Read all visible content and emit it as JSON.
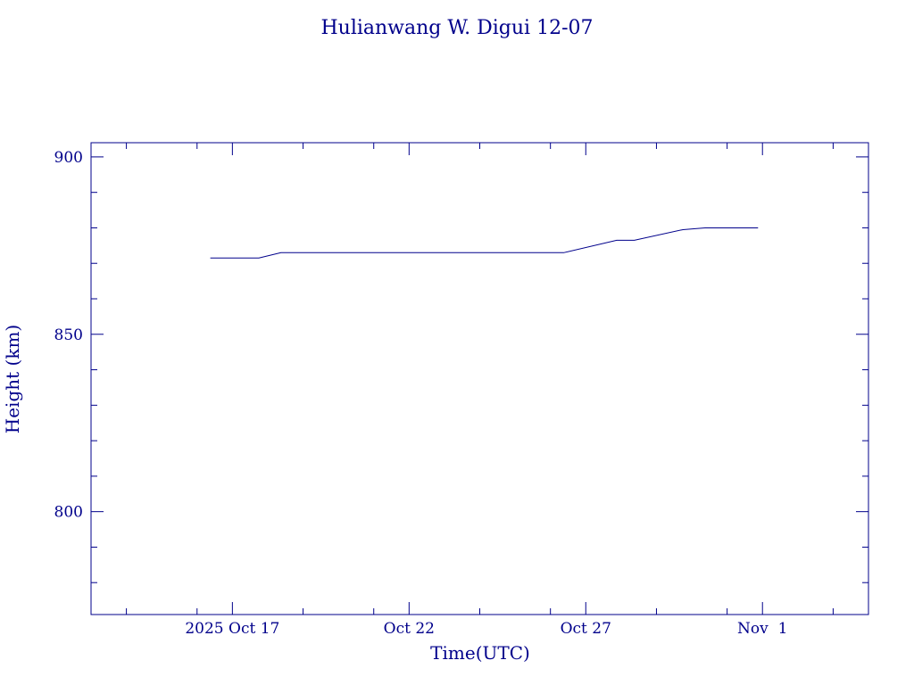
{
  "chart_data": {
    "type": "line",
    "title": "Hulianwang W. Digui 12-07",
    "xlabel": "Time(UTC)",
    "ylabel": "Height (km)",
    "xlim": [
      "2025-10-13",
      "2025-11-04"
    ],
    "ylim": [
      771,
      904
    ],
    "x_ticks": [
      {
        "date": "2025-10-17",
        "label": "2025 Oct 17"
      },
      {
        "date": "2025-10-22",
        "label": "Oct 22"
      },
      {
        "date": "2025-10-27",
        "label": "Oct 27"
      },
      {
        "date": "2025-11-01",
        "label": "Nov  1"
      }
    ],
    "y_ticks": [
      800,
      850,
      900
    ],
    "grid": false,
    "color": "#00008b",
    "series": [
      {
        "x": [
          "2025-10-16T09:00",
          "2025-10-17T18:00",
          "2025-10-18T09:00",
          "2025-10-26T09:00",
          "2025-10-27T21:00",
          "2025-10-28T09:00",
          "2025-10-29T18:00",
          "2025-10-30T09:00",
          "2025-10-31T21:00"
        ],
        "y": [
          871.5,
          871.5,
          873,
          873,
          876.5,
          876.5,
          879.5,
          880,
          880
        ]
      }
    ]
  }
}
